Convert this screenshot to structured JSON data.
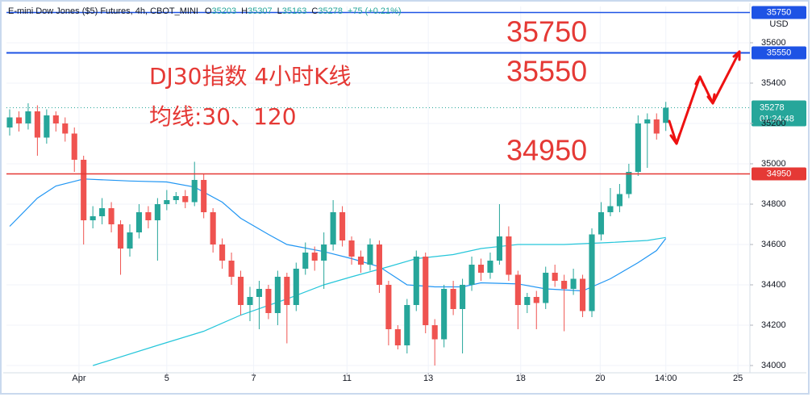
{
  "header": {
    "title": "E-mini Dow Jones ($5) Futures, 4h, CBOT_MINI",
    "ohlc_labels": [
      "O",
      "H",
      "L",
      "C"
    ],
    "change": "+75 (+0.21%)"
  },
  "chart_data": {
    "type": "candlestick",
    "x": [
      0,
      1,
      2,
      3,
      4,
      5,
      6,
      7,
      8,
      9,
      10,
      11,
      12,
      13,
      14,
      15,
      16,
      17,
      18,
      19,
      20,
      21,
      22,
      23,
      24,
      25,
      26,
      27,
      28,
      29,
      30,
      31,
      32,
      33,
      34,
      35,
      36,
      37,
      38,
      39,
      40,
      41,
      42,
      43,
      44,
      45,
      46,
      47,
      48,
      49,
      50,
      51,
      52,
      53,
      54,
      55,
      56,
      57,
      58,
      59,
      60,
      61,
      62,
      63,
      64,
      65,
      66,
      67,
      68,
      69,
      70,
      71
    ],
    "open": [
      35180,
      35230,
      35200,
      35260,
      35130,
      35240,
      35200,
      35150,
      35020,
      34720,
      34740,
      34780,
      34700,
      34580,
      34660,
      34760,
      34720,
      34800,
      34820,
      34840,
      34810,
      34920,
      34760,
      34600,
      34520,
      34440,
      34300,
      34340,
      34380,
      34260,
      34440,
      34300,
      34480,
      34560,
      34520,
      34600,
      34760,
      34620,
      34540,
      34500,
      34600,
      34400,
      34180,
      34100,
      34300,
      34540,
      34200,
      34130,
      34380,
      34280,
      34400,
      34500,
      34460,
      34520,
      34640,
      34450,
      34300,
      34340,
      34310,
      34460,
      34420,
      34380,
      34430,
      34270,
      34650,
      34760,
      34790,
      34850,
      34960,
      35200,
      35220,
      35203
    ],
    "high": [
      35270,
      35260,
      35300,
      35290,
      35270,
      35260,
      35230,
      35180,
      35040,
      34790,
      34830,
      34810,
      34720,
      34700,
      34800,
      34790,
      34830,
      34870,
      34860,
      34870,
      35010,
      34950,
      34780,
      34630,
      34560,
      34470,
      34390,
      34420,
      34400,
      34470,
      34460,
      34510,
      34610,
      34590,
      34660,
      34820,
      34790,
      34640,
      34570,
      34630,
      34620,
      34420,
      34200,
      34330,
      34570,
      34560,
      34230,
      34400,
      34420,
      34430,
      34540,
      34530,
      34560,
      34800,
      34690,
      34470,
      34360,
      34370,
      34490,
      34500,
      34450,
      34480,
      34450,
      34680,
      34810,
      34880,
      34900,
      35000,
      35240,
      35250,
      35250,
      35307
    ],
    "low": [
      35140,
      35160,
      35170,
      35040,
      35100,
      35160,
      35110,
      34960,
      34600,
      34680,
      34700,
      34660,
      34450,
      34540,
      34630,
      34680,
      34520,
      34770,
      34800,
      34780,
      34790,
      34730,
      34560,
      34480,
      34400,
      34250,
      34220,
      34180,
      34230,
      34200,
      34110,
      34270,
      34450,
      34470,
      34380,
      34570,
      34590,
      34500,
      34460,
      34470,
      34360,
      34100,
      34080,
      34060,
      34270,
      34160,
      34000,
      34090,
      34250,
      34060,
      34370,
      34420,
      34430,
      34500,
      34420,
      34180,
      34260,
      34180,
      34280,
      34390,
      34170,
      34350,
      34240,
      34240,
      34620,
      34740,
      34760,
      34830,
      34940,
      34980,
      35120,
      35163
    ],
    "close": [
      35230,
      35200,
      35260,
      35130,
      35240,
      35200,
      35150,
      35020,
      34720,
      34740,
      34780,
      34700,
      34580,
      34660,
      34760,
      34720,
      34800,
      34820,
      34840,
      34810,
      34920,
      34760,
      34600,
      34520,
      34440,
      34300,
      34340,
      34380,
      34260,
      34440,
      34300,
      34480,
      34560,
      34520,
      34600,
      34760,
      34620,
      34540,
      34500,
      34600,
      34400,
      34180,
      34100,
      34300,
      34540,
      34200,
      34130,
      34380,
      34280,
      34400,
      34500,
      34460,
      34520,
      34640,
      34450,
      34300,
      34340,
      34310,
      34460,
      34420,
      34380,
      34430,
      34270,
      34650,
      34760,
      34790,
      34850,
      34960,
      35200,
      35220,
      35150,
      35278
    ],
    "up_color": "#26a69a",
    "down_color": "#ef5350",
    "xlim": [
      -0.35,
      80.1
    ],
    "xticks": [
      {
        "value": 7.5,
        "label": "Apr"
      },
      {
        "value": 17.0,
        "label": "5"
      },
      {
        "value": 26.4,
        "label": "7"
      },
      {
        "value": 36.5,
        "label": "11"
      },
      {
        "value": 45.3,
        "label": "13"
      },
      {
        "value": 55.3,
        "label": "18"
      },
      {
        "value": 63.9,
        "label": "20"
      },
      {
        "value": 71.0,
        "label": "14:00"
      },
      {
        "value": 78.8,
        "label": "25"
      }
    ],
    "ylim": [
      33964,
      35780
    ],
    "yticks": [
      34000,
      34200,
      34400,
      34600,
      34800,
      35000,
      35200,
      35400,
      35600
    ],
    "grid": true,
    "currency": "USD",
    "moving_averages": [
      {
        "color": "#2196f3",
        "x": [
          0,
          3,
          5,
          8,
          13,
          17,
          20,
          23,
          25,
          28,
          30,
          34,
          37,
          40,
          42,
          43,
          46,
          49,
          51,
          55,
          58,
          62,
          65,
          68,
          70,
          71
        ],
        "values": [
          34690,
          34830,
          34890,
          34925,
          34915,
          34910,
          34885,
          34810,
          34730,
          34650,
          34600,
          34565,
          34530,
          34490,
          34430,
          34400,
          34390,
          34390,
          34410,
          34405,
          34380,
          34370,
          34430,
          34510,
          34570,
          34630
        ]
      },
      {
        "color": "#26c6da",
        "x": [
          9,
          16,
          21,
          25,
          30,
          34,
          37,
          41,
          44,
          48,
          51,
          55,
          60,
          65,
          69,
          71
        ],
        "values": [
          34000,
          34100,
          34170,
          34250,
          34330,
          34400,
          34440,
          34490,
          34530,
          34550,
          34580,
          34600,
          34600,
          34610,
          34620,
          34635
        ]
      }
    ],
    "levels": [
      {
        "value": 35750,
        "color": "#1e53e5"
      },
      {
        "value": 35550,
        "color": "#1e53e5"
      },
      {
        "value": 34950,
        "color": "#e53935"
      }
    ],
    "last_price": {
      "value": 35278,
      "countdown": "01:24:48",
      "color": "#26a69a"
    },
    "annotations": [
      "35750",
      "35550",
      "34950"
    ],
    "notes": [
      "DJ30指数 4小时K线",
      "均线:30、120"
    ]
  }
}
